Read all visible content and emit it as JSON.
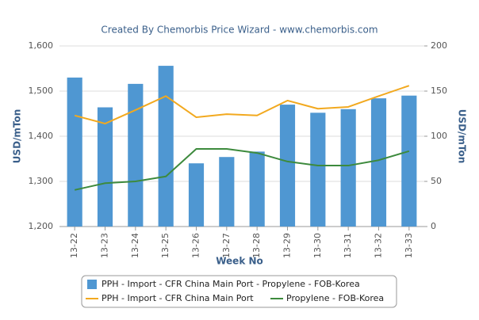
{
  "chart_data": {
    "type": "combo",
    "title": "Created By Chemorbis Price Wizard - www.chemorbis.com",
    "x_label": "Week No",
    "y_label": "USD/mTon",
    "y2_label": "USD/mTon",
    "categories": [
      "13-22",
      "13-23",
      "13-24",
      "13-25",
      "13-26",
      "13-27",
      "13-28",
      "13-29",
      "13-30",
      "13-31",
      "13-32",
      "13-33"
    ],
    "series": [
      {
        "name": "PPH - Import - CFR China Main Port - Propylene - FOB-Korea",
        "kind": "bar",
        "axis": "y2",
        "color": "#4f97d2",
        "values": [
          165,
          132,
          158,
          178,
          70,
          77,
          83,
          135,
          126,
          130,
          142,
          145
        ]
      },
      {
        "name": "PPH - Import - CFR China Main Port",
        "kind": "line",
        "color": "#f2a91f",
        "values": [
          1446,
          1428,
          1458,
          1489,
          1442,
          1449,
          1446,
          1479,
          1461,
          1465,
          1489,
          1512
        ]
      },
      {
        "name": "Propylene - FOB-Korea",
        "kind": "line",
        "color": "#3d8a3d",
        "values": [
          1281,
          1296,
          1300,
          1311,
          1372,
          1372,
          1363,
          1344,
          1335,
          1335,
          1347,
          1367
        ]
      }
    ],
    "ylim": [
      1200,
      1600
    ],
    "yticks": [
      {
        "value": 1200,
        "label": "1,200"
      },
      {
        "value": 1300,
        "label": "1,300"
      },
      {
        "value": 1400,
        "label": "1,400"
      },
      {
        "value": 1500,
        "label": "1,500"
      },
      {
        "value": 1600,
        "label": "1,600"
      }
    ],
    "y2lim": [
      0,
      200
    ],
    "y2ticks": [
      0,
      50,
      100,
      150,
      200
    ],
    "grid": true
  }
}
